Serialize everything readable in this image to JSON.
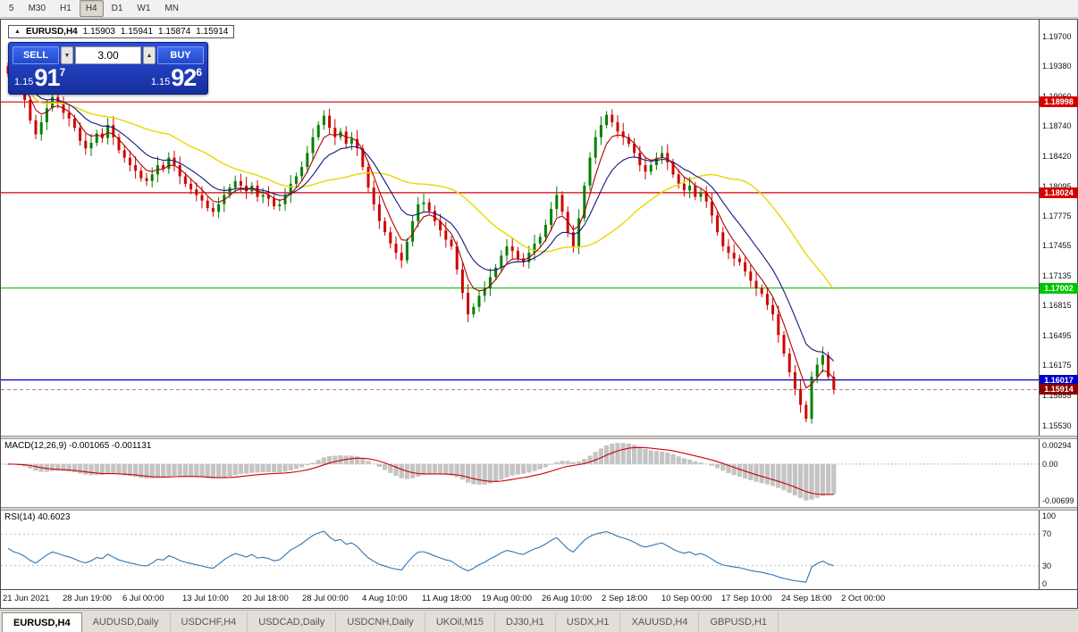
{
  "toolbar": {
    "timeframes": [
      "5",
      "M30",
      "H1",
      "H4",
      "D1",
      "W1",
      "MN"
    ],
    "active": "H4"
  },
  "quote_header": {
    "icon": "▲",
    "symbol": "EURUSD,H4",
    "open": "1.15903",
    "high": "1.15941",
    "low": "1.15874",
    "close": "1.15914"
  },
  "trade_panel": {
    "sell_label": "SELL",
    "buy_label": "BUY",
    "lot_value": "3.00",
    "spin_down_icon": "▼",
    "spin_up_icon": "▲",
    "sell_price": {
      "prefix": "1.15",
      "big": "91",
      "sup": "7"
    },
    "buy_price": {
      "prefix": "1.15",
      "big": "92",
      "sup": "6"
    }
  },
  "chart_data": {
    "type": "candlestick",
    "symbol": "EURUSD",
    "timeframe": "H4",
    "up_color": "#008000",
    "down_color": "#d00000",
    "price_axis": {
      "p_top": 1.1988,
      "p_bottom": 1.1542,
      "ticks": [
        "1.19700",
        "1.19380",
        "1.19060",
        "1.18740",
        "1.18420",
        "1.18095",
        "1.17775",
        "1.17455",
        "1.17135",
        "1.16815",
        "1.16495",
        "1.16175",
        "1.15855",
        "1.15530"
      ]
    },
    "first_open": 1.1938,
    "closes": [
      1.193,
      1.1922,
      1.1915,
      1.1902,
      1.188,
      1.1865,
      1.1878,
      1.1893,
      1.1905,
      1.1898,
      1.1888,
      1.1882,
      1.1872,
      1.1858,
      1.185,
      1.1856,
      1.1866,
      1.1861,
      1.1875,
      1.1862,
      1.1848,
      1.184,
      1.1832,
      1.1826,
      1.1818,
      1.1815,
      1.1822,
      1.1832,
      1.1828,
      1.184,
      1.1832,
      1.182,
      1.1812,
      1.1806,
      1.18,
      1.1794,
      1.1786,
      1.1782,
      1.179,
      1.18,
      1.1808,
      1.1815,
      1.181,
      1.1804,
      1.181,
      1.1798,
      1.18,
      1.1796,
      1.1788,
      1.179,
      1.18,
      1.1812,
      1.182,
      1.183,
      1.1845,
      1.1862,
      1.1875,
      1.1885,
      1.1872,
      1.1862,
      1.1868,
      1.1855,
      1.186,
      1.185,
      1.183,
      1.1808,
      1.179,
      1.1772,
      1.176,
      1.1748,
      1.1738,
      1.173,
      1.175,
      1.1772,
      1.179,
      1.1792,
      1.1783,
      1.1772,
      1.1762,
      1.1752,
      1.1745,
      1.172,
      1.1695,
      1.1672,
      1.168,
      1.1692,
      1.17,
      1.1712,
      1.1722,
      1.1735,
      1.1745,
      1.174,
      1.1732,
      1.1728,
      1.1738,
      1.1748,
      1.1755,
      1.1768,
      1.1785,
      1.18,
      1.1782,
      1.176,
      1.1745,
      1.1775,
      1.181,
      1.184,
      1.1862,
      1.1875,
      1.1886,
      1.1878,
      1.1868,
      1.1862,
      1.1855,
      1.1845,
      1.1832,
      1.1825,
      1.1832,
      1.184,
      1.1845,
      1.1835,
      1.1822,
      1.1812,
      1.1805,
      1.181,
      1.1798,
      1.1802,
      1.1793,
      1.1778,
      1.176,
      1.1745,
      1.1738,
      1.1732,
      1.1728,
      1.1718,
      1.1708,
      1.17,
      1.1694,
      1.1682,
      1.1672,
      1.165,
      1.163,
      1.161,
      1.1592,
      1.1575,
      1.156,
      1.1605,
      1.1618,
      1.1628,
      1.1605,
      1.15914
    ],
    "moving_averages": [
      {
        "name": "ma-slow",
        "type": "sma",
        "period": 30,
        "color": "#ecd500",
        "width": 1.4
      },
      {
        "name": "ma-mid",
        "type": "ema",
        "period": 12,
        "color": "#151580",
        "width": 1.1
      },
      {
        "name": "ma-fast",
        "type": "ema",
        "period": 5,
        "color": "#b00000",
        "width": 1.1
      }
    ],
    "hlines": [
      {
        "price": 1.18998,
        "label": "1.18998",
        "color": "#d40000"
      },
      {
        "price": 1.18024,
        "label": "1.18024",
        "color": "#d40000"
      },
      {
        "price": 1.17002,
        "label": "1.17002",
        "color": "#00c400"
      },
      {
        "price": 1.16017,
        "label": "1.16017",
        "color": "#0000c8"
      }
    ],
    "current_price": {
      "value": 1.15914,
      "label": "1.15914",
      "color": "#8b0000"
    },
    "x_labels": [
      "21 Jun 2021",
      "28 Jun 19:00",
      "6 Jul 00:00",
      "13 Jul 10:00",
      "20 Jul 18:00",
      "28 Jul 00:00",
      "4 Aug 10:00",
      "11 Aug 18:00",
      "19 Aug 00:00",
      "26 Aug 10:00",
      "2 Sep 18:00",
      "10 Sep 00:00",
      "17 Sep 10:00",
      "24 Sep 18:00",
      "2 Oct 00:00"
    ],
    "indicators": {
      "macd": {
        "label": "MACD(12,26,9) -0.001065 -0.001131",
        "params": [
          12,
          26,
          9
        ],
        "values": [
          "-0.001065",
          "-0.001131"
        ],
        "axis": [
          "0.00294",
          "0.00",
          "-0.00699"
        ],
        "hist_color": "#c4c4c4",
        "signal_color": "#cc0000"
      },
      "rsi": {
        "label": "RSI(14) 40.6023",
        "period": 14,
        "value": 40.6023,
        "axis": [
          "100",
          "70",
          "30",
          "0"
        ],
        "levels": [
          70,
          30
        ],
        "color": "#2e75b6"
      }
    }
  },
  "tabs": [
    {
      "label": "EURUSD,H4",
      "active": true
    },
    {
      "label": "AUDUSD,Daily",
      "active": false
    },
    {
      "label": "USDCHF,H4",
      "active": false
    },
    {
      "label": "USDCAD,Daily",
      "active": false
    },
    {
      "label": "USDCNH,Daily",
      "active": false
    },
    {
      "label": "UKOil,M15",
      "active": false
    },
    {
      "label": "DJ30,H1",
      "active": false
    },
    {
      "label": "USDX,H1",
      "active": false
    },
    {
      "label": "XAUUSD,H4",
      "active": false
    },
    {
      "label": "GBPUSD,H1",
      "active": false
    }
  ]
}
